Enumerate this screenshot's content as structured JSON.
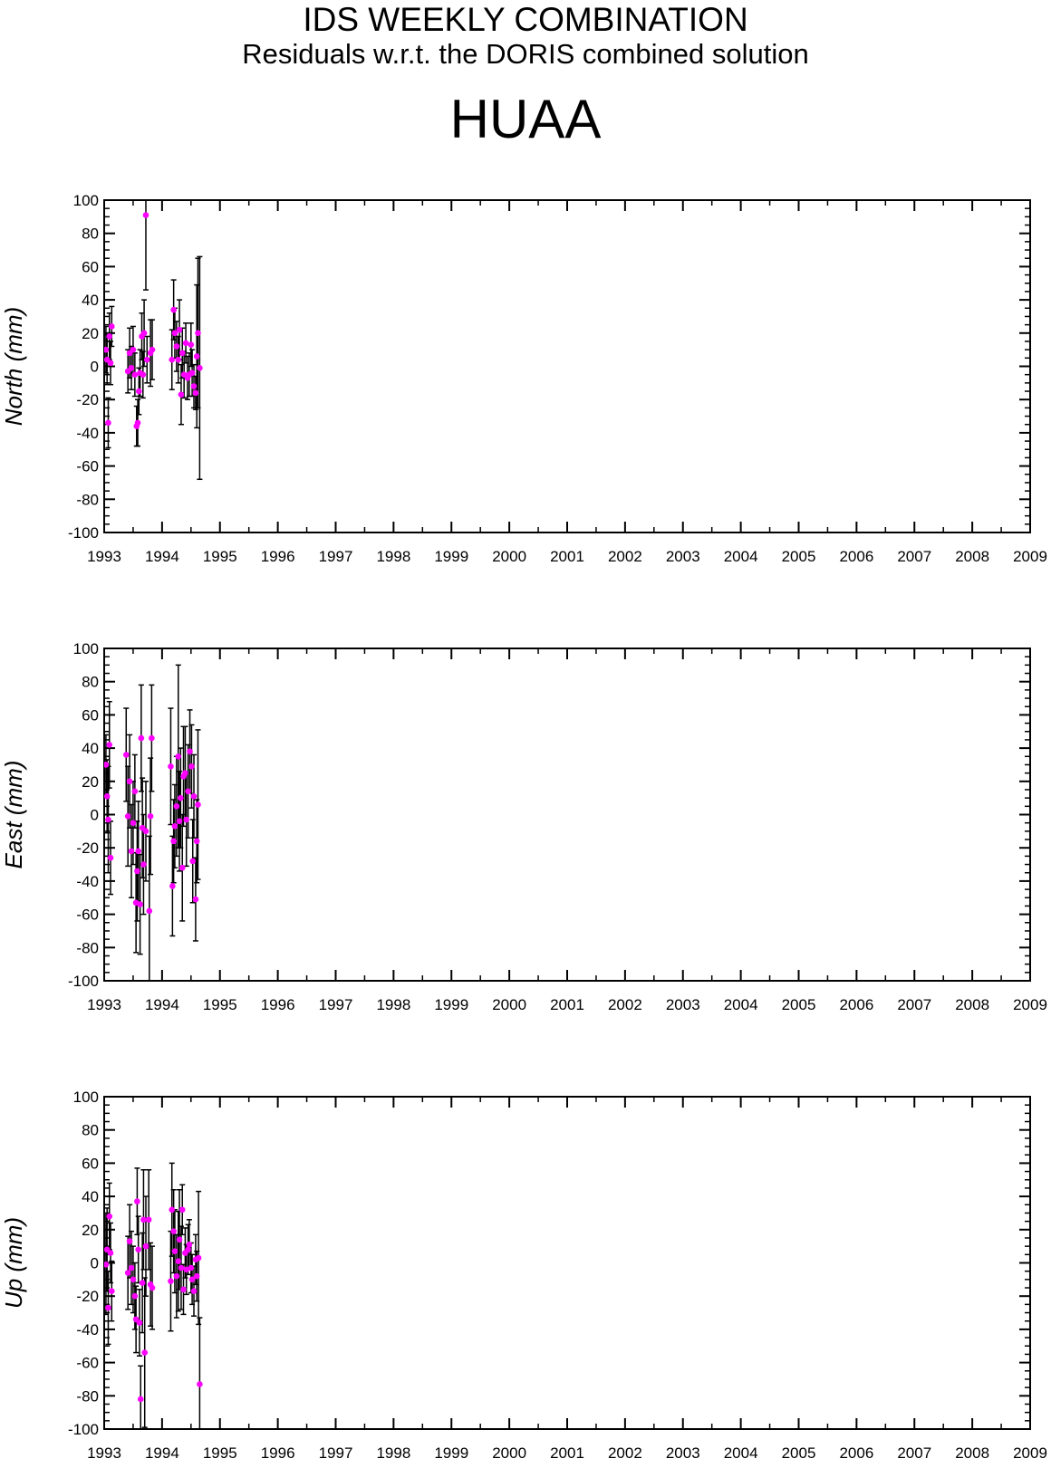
{
  "header": {
    "title": "IDS WEEKLY COMBINATION",
    "subtitle": "Residuals w.r.t. the DORIS combined solution",
    "station": "HUAA"
  },
  "colors": {
    "point": "#ff00ff",
    "axis": "#000000",
    "errorbar": "#000000"
  },
  "chart_data": [
    {
      "type": "scatter",
      "ylabel": "North (mm)",
      "xlim": [
        1993,
        2009
      ],
      "ylim": [
        -100,
        100
      ],
      "xticks": [
        1993,
        1994,
        1995,
        1996,
        1997,
        1998,
        1999,
        2000,
        2001,
        2002,
        2003,
        2004,
        2005,
        2006,
        2007,
        2008,
        2009
      ],
      "yticks": [
        -100,
        -80,
        -60,
        -40,
        -20,
        0,
        20,
        40,
        60,
        80,
        100
      ],
      "grid": false,
      "points": [
        {
          "x": 1993.03,
          "y": 10,
          "err": 14
        },
        {
          "x": 1993.05,
          "y": 4,
          "err": 15
        },
        {
          "x": 1993.07,
          "y": -34,
          "err": 15
        },
        {
          "x": 1993.09,
          "y": 18,
          "err": 14
        },
        {
          "x": 1993.11,
          "y": 2,
          "err": 13
        },
        {
          "x": 1993.13,
          "y": 24,
          "err": 12
        },
        {
          "x": 1993.41,
          "y": -3,
          "err": 13
        },
        {
          "x": 1993.44,
          "y": 8,
          "err": 15
        },
        {
          "x": 1993.47,
          "y": -1,
          "err": 13
        },
        {
          "x": 1993.5,
          "y": 10,
          "err": 14
        },
        {
          "x": 1993.53,
          "y": -5,
          "err": 13
        },
        {
          "x": 1993.56,
          "y": -36,
          "err": 12
        },
        {
          "x": 1993.58,
          "y": -34,
          "err": 14
        },
        {
          "x": 1993.6,
          "y": -15,
          "err": 14
        },
        {
          "x": 1993.62,
          "y": -4,
          "err": 14
        },
        {
          "x": 1993.65,
          "y": 18,
          "err": 14
        },
        {
          "x": 1993.67,
          "y": -5,
          "err": 14
        },
        {
          "x": 1993.69,
          "y": 20,
          "err": 20
        },
        {
          "x": 1993.72,
          "y": 91,
          "err": 45
        },
        {
          "x": 1993.74,
          "y": 4,
          "err": 14
        },
        {
          "x": 1993.8,
          "y": 8,
          "err": 20
        },
        {
          "x": 1993.83,
          "y": 10,
          "err": 18
        },
        {
          "x": 1994.17,
          "y": 4,
          "err": 18
        },
        {
          "x": 1994.2,
          "y": 34,
          "err": 18
        },
        {
          "x": 1994.22,
          "y": 20,
          "err": 15
        },
        {
          "x": 1994.25,
          "y": 12,
          "err": 15
        },
        {
          "x": 1994.28,
          "y": 4,
          "err": 14
        },
        {
          "x": 1994.3,
          "y": 22,
          "err": 18
        },
        {
          "x": 1994.33,
          "y": -17,
          "err": 18
        },
        {
          "x": 1994.35,
          "y": 8,
          "err": 15
        },
        {
          "x": 1994.38,
          "y": -5,
          "err": 14
        },
        {
          "x": 1994.41,
          "y": 14,
          "err": 12
        },
        {
          "x": 1994.44,
          "y": -7,
          "err": 13
        },
        {
          "x": 1994.47,
          "y": -5,
          "err": 13
        },
        {
          "x": 1994.5,
          "y": 13,
          "err": 13
        },
        {
          "x": 1994.52,
          "y": -4,
          "err": 14
        },
        {
          "x": 1994.55,
          "y": -12,
          "err": 13
        },
        {
          "x": 1994.58,
          "y": -16,
          "err": 10
        },
        {
          "x": 1994.6,
          "y": 6,
          "err": 43
        },
        {
          "x": 1994.62,
          "y": 20,
          "err": 45
        },
        {
          "x": 1994.65,
          "y": -1,
          "err": 67
        }
      ]
    },
    {
      "type": "scatter",
      "ylabel": "East (mm)",
      "xlim": [
        1993,
        2009
      ],
      "ylim": [
        -100,
        100
      ],
      "xticks": [
        1993,
        1994,
        1995,
        1996,
        1997,
        1998,
        1999,
        2000,
        2001,
        2002,
        2003,
        2004,
        2005,
        2006,
        2007,
        2008,
        2009
      ],
      "yticks": [
        -100,
        -80,
        -60,
        -40,
        -20,
        0,
        20,
        40,
        60,
        80,
        100
      ],
      "grid": false,
      "points": [
        {
          "x": 1993.03,
          "y": 30,
          "err": 18
        },
        {
          "x": 1993.05,
          "y": 11,
          "err": 22
        },
        {
          "x": 1993.07,
          "y": -3,
          "err": 32
        },
        {
          "x": 1993.09,
          "y": 42,
          "err": 26
        },
        {
          "x": 1993.11,
          "y": -26,
          "err": 22
        },
        {
          "x": 1993.38,
          "y": 36,
          "err": 28
        },
        {
          "x": 1993.41,
          "y": -1,
          "err": 30
        },
        {
          "x": 1993.44,
          "y": 20,
          "err": 28
        },
        {
          "x": 1993.47,
          "y": -22,
          "err": 28
        },
        {
          "x": 1993.5,
          "y": -5,
          "err": 25
        },
        {
          "x": 1993.53,
          "y": 14,
          "err": 22
        },
        {
          "x": 1993.55,
          "y": -53,
          "err": 30
        },
        {
          "x": 1993.57,
          "y": -34,
          "err": 30
        },
        {
          "x": 1993.59,
          "y": -22,
          "err": 30
        },
        {
          "x": 1993.62,
          "y": -54,
          "err": 30
        },
        {
          "x": 1993.64,
          "y": 46,
          "err": 32
        },
        {
          "x": 1993.66,
          "y": -8,
          "err": 30
        },
        {
          "x": 1993.68,
          "y": -30,
          "err": 30
        },
        {
          "x": 1993.72,
          "y": -10,
          "err": 30
        },
        {
          "x": 1993.78,
          "y": -58,
          "err": 45
        },
        {
          "x": 1993.8,
          "y": -1,
          "err": 35
        },
        {
          "x": 1993.82,
          "y": 46,
          "err": 32
        },
        {
          "x": 1994.15,
          "y": 29,
          "err": 35
        },
        {
          "x": 1994.18,
          "y": -43,
          "err": 30
        },
        {
          "x": 1994.2,
          "y": -16,
          "err": 25
        },
        {
          "x": 1994.22,
          "y": -7,
          "err": 25
        },
        {
          "x": 1994.25,
          "y": 5,
          "err": 30
        },
        {
          "x": 1994.28,
          "y": 35,
          "err": 55
        },
        {
          "x": 1994.3,
          "y": -4,
          "err": 30
        },
        {
          "x": 1994.32,
          "y": 10,
          "err": 30
        },
        {
          "x": 1994.35,
          "y": -32,
          "err": 32
        },
        {
          "x": 1994.37,
          "y": 23,
          "err": 30
        },
        {
          "x": 1994.4,
          "y": 25,
          "err": 28
        },
        {
          "x": 1994.42,
          "y": -3,
          "err": 28
        },
        {
          "x": 1994.45,
          "y": 14,
          "err": 28
        },
        {
          "x": 1994.48,
          "y": 38,
          "err": 25
        },
        {
          "x": 1994.51,
          "y": 29,
          "err": 25
        },
        {
          "x": 1994.53,
          "y": -28,
          "err": 25
        },
        {
          "x": 1994.55,
          "y": 11,
          "err": 25
        },
        {
          "x": 1994.58,
          "y": -51,
          "err": 25
        },
        {
          "x": 1994.6,
          "y": -16,
          "err": 25
        },
        {
          "x": 1994.62,
          "y": 6,
          "err": 45
        }
      ]
    },
    {
      "type": "scatter",
      "ylabel": "Up (mm)",
      "xlim": [
        1993,
        2009
      ],
      "ylim": [
        -100,
        100
      ],
      "xticks": [
        1993,
        1994,
        1995,
        1996,
        1997,
        1998,
        1999,
        2000,
        2001,
        2002,
        2003,
        2004,
        2005,
        2006,
        2007,
        2008,
        2009
      ],
      "yticks": [
        -100,
        -80,
        -60,
        -40,
        -20,
        0,
        20,
        40,
        60,
        80,
        100
      ],
      "grid": false,
      "points": [
        {
          "x": 1993.03,
          "y": -1,
          "err": 30
        },
        {
          "x": 1993.05,
          "y": 8,
          "err": 25
        },
        {
          "x": 1993.07,
          "y": -27,
          "err": 22
        },
        {
          "x": 1993.09,
          "y": 28,
          "err": 20
        },
        {
          "x": 1993.11,
          "y": 6,
          "err": 18
        },
        {
          "x": 1993.13,
          "y": -17,
          "err": 18
        },
        {
          "x": 1993.41,
          "y": -6,
          "err": 22
        },
        {
          "x": 1993.44,
          "y": 13,
          "err": 22
        },
        {
          "x": 1993.47,
          "y": -3,
          "err": 22
        },
        {
          "x": 1993.5,
          "y": -10,
          "err": 20
        },
        {
          "x": 1993.53,
          "y": -20,
          "err": 20
        },
        {
          "x": 1993.55,
          "y": -34,
          "err": 20
        },
        {
          "x": 1993.57,
          "y": 37,
          "err": 20
        },
        {
          "x": 1993.59,
          "y": 8,
          "err": 20
        },
        {
          "x": 1993.61,
          "y": -36,
          "err": 20
        },
        {
          "x": 1993.63,
          "y": -82,
          "err": 20
        },
        {
          "x": 1993.66,
          "y": -12,
          "err": 30
        },
        {
          "x": 1993.68,
          "y": 26,
          "err": 30
        },
        {
          "x": 1993.7,
          "y": -54,
          "err": 45
        },
        {
          "x": 1993.72,
          "y": 10,
          "err": 30
        },
        {
          "x": 1993.77,
          "y": 26,
          "err": 30
        },
        {
          "x": 1993.8,
          "y": -13,
          "err": 25
        },
        {
          "x": 1993.83,
          "y": -15,
          "err": 25
        },
        {
          "x": 1994.15,
          "y": -11,
          "err": 30
        },
        {
          "x": 1994.17,
          "y": 32,
          "err": 28
        },
        {
          "x": 1994.2,
          "y": 19,
          "err": 25
        },
        {
          "x": 1994.22,
          "y": 7,
          "err": 25
        },
        {
          "x": 1994.25,
          "y": -8,
          "err": 25
        },
        {
          "x": 1994.28,
          "y": 1,
          "err": 30
        },
        {
          "x": 1994.3,
          "y": 14,
          "err": 30
        },
        {
          "x": 1994.33,
          "y": -3,
          "err": 25
        },
        {
          "x": 1994.35,
          "y": 32,
          "err": 15
        },
        {
          "x": 1994.37,
          "y": -16,
          "err": 15
        },
        {
          "x": 1994.4,
          "y": 6,
          "err": 15
        },
        {
          "x": 1994.42,
          "y": -4,
          "err": 15
        },
        {
          "x": 1994.45,
          "y": 8,
          "err": 15
        },
        {
          "x": 1994.47,
          "y": 11,
          "err": 15
        },
        {
          "x": 1994.5,
          "y": -3,
          "err": 15
        },
        {
          "x": 1994.52,
          "y": -10,
          "err": 15
        },
        {
          "x": 1994.55,
          "y": -17,
          "err": 15
        },
        {
          "x": 1994.58,
          "y": 2,
          "err": 15
        },
        {
          "x": 1994.6,
          "y": -8,
          "err": 15
        },
        {
          "x": 1994.63,
          "y": 3,
          "err": 40
        },
        {
          "x": 1994.65,
          "y": -73,
          "err": 40
        }
      ]
    }
  ]
}
